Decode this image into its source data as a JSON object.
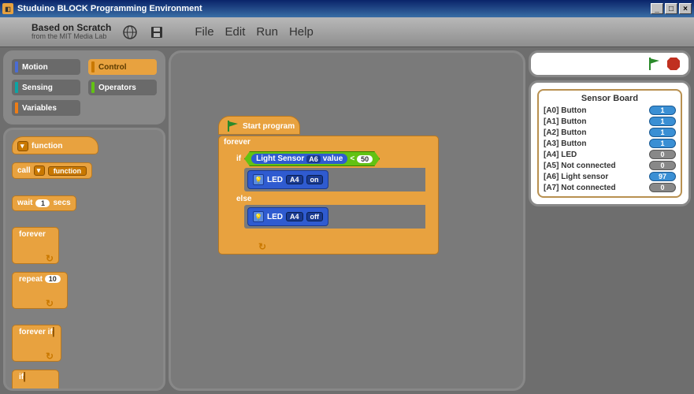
{
  "window": {
    "title": "Studuino BLOCK Programming Environment"
  },
  "brand": {
    "line1": "Based on Scratch",
    "line2": "from the MIT Media Lab"
  },
  "menus": {
    "file": "File",
    "edit": "Edit",
    "run": "Run",
    "help": "Help"
  },
  "categories": {
    "motion": {
      "label": "Motion",
      "color": "#4a6cd4"
    },
    "control": {
      "label": "Control",
      "color": "#e8a23f",
      "selected": true
    },
    "sensing": {
      "label": "Sensing",
      "color": "#0ca4a4"
    },
    "operators": {
      "label": "Operators",
      "color": "#62c213"
    },
    "variables": {
      "label": "Variables",
      "color": "#ee7d16"
    }
  },
  "palette": {
    "function_def": "function",
    "call": "call",
    "call_arg": "function",
    "wait": "wait",
    "wait_val": "1",
    "wait_unit": "secs",
    "forever": "forever",
    "repeat": "repeat",
    "repeat_val": "10",
    "forever_if": "forever if",
    "if": "if"
  },
  "script": {
    "hat": "Start program",
    "forever": "forever",
    "if": "if",
    "else": "else",
    "condition": {
      "sensor_label": "Light Sensor",
      "port": "A6",
      "value_word": "value",
      "op": "<",
      "threshold": "50"
    },
    "led_on": {
      "label": "LED",
      "port": "A4",
      "state": "on"
    },
    "led_off": {
      "label": "LED",
      "port": "A4",
      "state": "off"
    }
  },
  "sensor_board": {
    "title": "Sensor Board",
    "rows": [
      {
        "label": "[A0] Button",
        "value": "1",
        "zero": false
      },
      {
        "label": "[A1] Button",
        "value": "1",
        "zero": false
      },
      {
        "label": "[A2] Button",
        "value": "1",
        "zero": false
      },
      {
        "label": "[A3] Button",
        "value": "1",
        "zero": false
      },
      {
        "label": "[A4] LED",
        "value": "0",
        "zero": true
      },
      {
        "label": "[A5] Not connected",
        "value": "0",
        "zero": true
      },
      {
        "label": "[A6] Light sensor",
        "value": "97",
        "zero": false
      },
      {
        "label": "[A7] Not connected",
        "value": "0",
        "zero": true
      }
    ]
  },
  "colors": {
    "control": "#e8a23f",
    "control_dark": "#c97800",
    "motion_block": "#2f5bd0",
    "motion_dark": "#1a3a90",
    "operator": "#62c213"
  }
}
